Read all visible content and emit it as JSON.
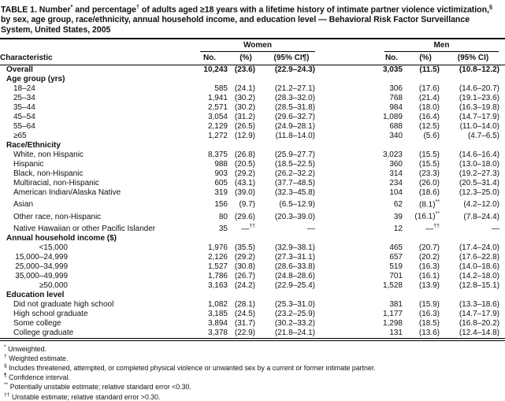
{
  "title_segments": [
    {
      "t": "TABLE 1. Number",
      "sup": false
    },
    {
      "t": "*",
      "sup": true
    },
    {
      "t": " and percentage",
      "sup": false
    },
    {
      "t": "†",
      "sup": true
    },
    {
      "t": " of adults aged ≥18 years with a lifetime history of intimate partner violence victimization,",
      "sup": false
    },
    {
      "t": "§",
      "sup": true
    },
    {
      "t": " by sex, age group, race/ethnicity, annual household income, and education level — Behavioral Risk Factor Surveillance System, United States, 2005",
      "sup": false
    }
  ],
  "table": {
    "group_headers": {
      "women": "Women",
      "men": "Men"
    },
    "column_headers": {
      "characteristic": "Characteristic",
      "women_no": "No.",
      "women_pct": "(%)",
      "women_ci": "(95% CI¶)",
      "men_no": "No.",
      "men_pct": "(%)",
      "men_ci": "(95% CI)"
    },
    "rows": [
      {
        "kind": "data",
        "style": "overall",
        "label": "Overall",
        "women": [
          "10,243",
          "(23.6)",
          "(22.9–24.3)"
        ],
        "men": [
          "3,035",
          "(11.5)",
          "(10.8–12.2)"
        ]
      },
      {
        "kind": "section",
        "label": "Age group (yrs)"
      },
      {
        "kind": "data",
        "style": "indent",
        "label": "18–24",
        "women": [
          "585",
          "(24.1)",
          "(21.2–27.1)"
        ],
        "men": [
          "306",
          "(17.6)",
          "(14.6–20.7)"
        ]
      },
      {
        "kind": "data",
        "style": "indent",
        "label": "25–34",
        "women": [
          "1,941",
          "(30.2)",
          "(28.3–32.0)"
        ],
        "men": [
          "768",
          "(21.4)",
          "(19.1–23.6)"
        ]
      },
      {
        "kind": "data",
        "style": "indent",
        "label": "35–44",
        "women": [
          "2,571",
          "(30.2)",
          "(28.5–31.8)"
        ],
        "men": [
          "984",
          "(18.0)",
          "(16.3–19.8)"
        ]
      },
      {
        "kind": "data",
        "style": "indent",
        "label": "45–54",
        "women": [
          "3,054",
          "(31.2)",
          "(29.6–32.7)"
        ],
        "men": [
          "1,089",
          "(16.4)",
          "(14.7–17.9)"
        ]
      },
      {
        "kind": "data",
        "style": "indent",
        "label": "55–64",
        "women": [
          "2,129",
          "(26.5)",
          "(24.9–28.1)"
        ],
        "men": [
          "688",
          "(12.5)",
          "(11.0–14.0)"
        ]
      },
      {
        "kind": "data",
        "style": "indent",
        "label": "≥65",
        "women": [
          "1,272",
          "(12.9)",
          "(11.8–14.0)"
        ],
        "men": [
          "340",
          "(5.6)",
          "(4.7–6.5)"
        ]
      },
      {
        "kind": "section",
        "label": "Race/Ethnicity"
      },
      {
        "kind": "data",
        "style": "indent",
        "label": "White, non Hispanic",
        "women": [
          "8,375",
          "(26.8)",
          "(25.9–27.7)"
        ],
        "men": [
          "3,023",
          "(15.5)",
          "(14.6–16.4)"
        ]
      },
      {
        "kind": "data",
        "style": "indent",
        "label": "Hispanic",
        "women": [
          "988",
          "(20.5)",
          "(18.5–22.5)"
        ],
        "men": [
          "360",
          "(15.5)",
          "(13.0–18.0)"
        ]
      },
      {
        "kind": "data",
        "style": "indent",
        "label": "Black, non-Hispanic",
        "women": [
          "903",
          "(29.2)",
          "(26.2–32.2)"
        ],
        "men": [
          "314",
          "(23.3)",
          "(19.2–27.3)"
        ]
      },
      {
        "kind": "data",
        "style": "indent",
        "label": "Multiracial, non-Hispanic",
        "women": [
          "605",
          "(43.1)",
          "(37.7–48.5)"
        ],
        "men": [
          "234",
          "(26.0)",
          "(20.5–31.4)"
        ]
      },
      {
        "kind": "data",
        "style": "indent",
        "label": "American Indian/Alaska Native",
        "women": [
          "319",
          "(39.0)",
          "(32.3–45.8)"
        ],
        "men": [
          "104",
          "(18.6)",
          "(12.3–25.0)"
        ]
      },
      {
        "kind": "data",
        "style": "indent",
        "label": "Asian",
        "women": [
          "156",
          "(9.7)",
          "(6.5–12.9)"
        ],
        "men": [
          "62",
          "(8.1)**",
          "(4.2–12.0)"
        ]
      },
      {
        "kind": "data",
        "style": "indent",
        "label": "Other race, non-Hispanic",
        "women": [
          "80",
          "(29.6)",
          "(20.3–39.0)"
        ],
        "men": [
          "39",
          "(16.1)**",
          "(7.8–24.4)"
        ]
      },
      {
        "kind": "data",
        "style": "indent",
        "label": "Native Hawaiian or other Pacific Islander",
        "women": [
          "35",
          "—††",
          "—"
        ],
        "men": [
          "12",
          "—††",
          "—"
        ]
      },
      {
        "kind": "section",
        "label": "Annual household income ($)"
      },
      {
        "kind": "data",
        "style": "income",
        "label": "<15,000",
        "women": [
          "1,976",
          "(35.5)",
          "(32.9–38.1)"
        ],
        "men": [
          "465",
          "(20.7)",
          "(17.4–24.0)"
        ]
      },
      {
        "kind": "data",
        "style": "income",
        "label": "15,000–24,999",
        "women": [
          "2,126",
          "(29.2)",
          "(27.3–31.1)"
        ],
        "men": [
          "657",
          "(20.2)",
          "(17.6–22.8)"
        ]
      },
      {
        "kind": "data",
        "style": "income",
        "label": "25,000–34,999",
        "women": [
          "1,527",
          "(30.8)",
          "(28.6–33.8)"
        ],
        "men": [
          "519",
          "(16.3)",
          "(14.0–18.6)"
        ]
      },
      {
        "kind": "data",
        "style": "income",
        "label": "35,000–49,999",
        "women": [
          "1,786",
          "(26.7)",
          "(24.8–28.6)"
        ],
        "men": [
          "701",
          "(16.1)",
          "(14.2–18.0)"
        ]
      },
      {
        "kind": "data",
        "style": "income",
        "label": "≥50,000",
        "women": [
          "3,163",
          "(24.2)",
          "(22.9–25.4)"
        ],
        "men": [
          "1,528",
          "(13.9)",
          "(12.8–15.1)"
        ]
      },
      {
        "kind": "section",
        "label": "Education level"
      },
      {
        "kind": "data",
        "style": "indent",
        "label": "Did not graduate high school",
        "women": [
          "1,082",
          "(28.1)",
          "(25.3–31.0)"
        ],
        "men": [
          "381",
          "(15.9)",
          "(13.3–18.6)"
        ]
      },
      {
        "kind": "data",
        "style": "indent",
        "label": "High school graduate",
        "women": [
          "3,185",
          "(24.5)",
          "(23.2–25.9)"
        ],
        "men": [
          "1,177",
          "(16.3)",
          "(14.7–17.9)"
        ]
      },
      {
        "kind": "data",
        "style": "indent",
        "label": "Some college",
        "women": [
          "3,894",
          "(31.7)",
          "(30.2–33.2)"
        ],
        "men": [
          "1,298",
          "(18.5)",
          "(16.8–20.2)"
        ]
      },
      {
        "kind": "data",
        "style": "indent",
        "label": "College graduate",
        "women": [
          "3,378",
          "(22.9)",
          "(21.8–24.1)"
        ],
        "men": [
          "131",
          "(13.6)",
          "(12.4–14.8)"
        ]
      }
    ]
  },
  "footnotes": [
    {
      "marker": "*",
      "text": "Unweighted."
    },
    {
      "marker": "†",
      "text": "Weighted estimate."
    },
    {
      "marker": "§",
      "text": "Includes threatened, attempted, or completed physical violence or unwanted sex by a current or former intimate partner."
    },
    {
      "marker": "¶",
      "text": "Confidence interval."
    },
    {
      "marker": "**",
      "text": "Potentially unstable estimate; relative standard error <0.30."
    },
    {
      "marker": "††",
      "text": "Unstable estimate; relative standard error >0.30."
    }
  ]
}
